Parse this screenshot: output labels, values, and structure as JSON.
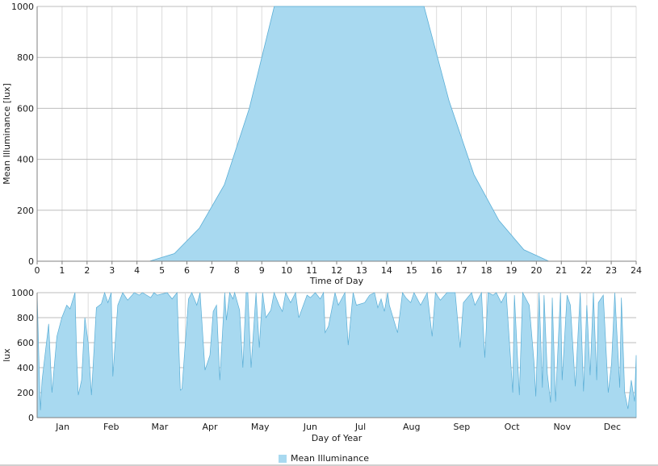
{
  "colors": {
    "fill": "#a8d9f0",
    "stroke": "#5aaed6",
    "grid": "#dcdcdc",
    "axis": "#808080"
  },
  "legend": {
    "label": "Mean Illuminance"
  },
  "chart_data": [
    {
      "type": "area",
      "xlabel": "Time of Day",
      "ylabel": "Mean Illuminance [lux]",
      "xlim": [
        0,
        24
      ],
      "ylim": [
        0,
        1000
      ],
      "xticks": [
        "0",
        "1",
        "2",
        "3",
        "4",
        "5",
        "6",
        "7",
        "8",
        "9",
        "10",
        "11",
        "12",
        "13",
        "14",
        "15",
        "16",
        "17",
        "18",
        "19",
        "20",
        "21",
        "22",
        "23",
        "24"
      ],
      "yticks": [
        "0",
        "200",
        "400",
        "600",
        "800",
        "1000"
      ],
      "grid": true,
      "series": [
        {
          "name": "Mean Illuminance",
          "x": [
            0,
            4.5,
            5.5,
            6.5,
            7.5,
            8.5,
            9.5,
            10.5,
            11.5,
            12.5,
            13.5,
            14.5,
            15.5,
            16.5,
            17.5,
            18.5,
            19.5,
            20.5,
            24
          ],
          "y": [
            0,
            0,
            30,
            130,
            300,
            600,
            1000,
            1000,
            1000,
            1000,
            1000,
            1000,
            1000,
            630,
            340,
            160,
            45,
            0,
            0
          ]
        }
      ]
    },
    {
      "type": "area",
      "xlabel": "Day of Year",
      "ylabel": "lux",
      "xlim": [
        1,
        365
      ],
      "ylim": [
        0,
        1000
      ],
      "yticks": [
        "0",
        "200",
        "400",
        "600",
        "800",
        "1000"
      ],
      "categories": [
        "Jan",
        "Feb",
        "Mar",
        "Apr",
        "May",
        "Jun",
        "Jul",
        "Aug",
        "Sep",
        "Oct",
        "Nov",
        "Dec"
      ],
      "grid": true,
      "dips": [
        [
          2,
          500
        ],
        [
          3,
          60
        ],
        [
          4,
          300
        ],
        [
          8,
          750
        ],
        [
          10,
          200
        ],
        [
          13,
          650
        ],
        [
          16,
          800
        ],
        [
          19,
          900
        ],
        [
          21,
          870
        ],
        [
          24,
          1000
        ],
        [
          25,
          500
        ],
        [
          26,
          180
        ],
        [
          28,
          300
        ],
        [
          30,
          800
        ],
        [
          32,
          600
        ],
        [
          34,
          180
        ],
        [
          37,
          880
        ],
        [
          40,
          910
        ],
        [
          42,
          1000
        ],
        [
          44,
          920
        ],
        [
          46,
          1000
        ],
        [
          47,
          330
        ],
        [
          50,
          900
        ],
        [
          53,
          1000
        ],
        [
          56,
          940
        ],
        [
          60,
          1000
        ],
        [
          63,
          980
        ],
        [
          65,
          1000
        ],
        [
          70,
          960
        ],
        [
          72,
          1000
        ],
        [
          74,
          980
        ],
        [
          80,
          1000
        ],
        [
          83,
          950
        ],
        [
          86,
          1000
        ],
        [
          88,
          220
        ],
        [
          89,
          230
        ],
        [
          93,
          950
        ],
        [
          95,
          1000
        ],
        [
          98,
          900
        ],
        [
          100,
          1000
        ],
        [
          103,
          380
        ],
        [
          106,
          500
        ],
        [
          108,
          850
        ],
        [
          110,
          900
        ],
        [
          112,
          300
        ],
        [
          115,
          1000
        ],
        [
          116,
          780
        ],
        [
          118,
          1000
        ],
        [
          120,
          950
        ],
        [
          121,
          1000
        ],
        [
          124,
          860
        ],
        [
          126,
          400
        ],
        [
          128,
          1000
        ],
        [
          129,
          1000
        ],
        [
          131,
          400
        ],
        [
          134,
          1000
        ],
        [
          136,
          560
        ],
        [
          138,
          1000
        ],
        [
          140,
          800
        ],
        [
          143,
          860
        ],
        [
          145,
          1000
        ],
        [
          148,
          900
        ],
        [
          150,
          850
        ],
        [
          152,
          1000
        ],
        [
          155,
          920
        ],
        [
          158,
          1000
        ],
        [
          160,
          800
        ],
        [
          165,
          980
        ],
        [
          167,
          960
        ],
        [
          170,
          1000
        ],
        [
          173,
          950
        ],
        [
          175,
          1000
        ],
        [
          176,
          680
        ],
        [
          178,
          730
        ],
        [
          182,
          1000
        ],
        [
          184,
          900
        ],
        [
          188,
          1000
        ],
        [
          190,
          580
        ],
        [
          193,
          1000
        ],
        [
          195,
          900
        ],
        [
          200,
          920
        ],
        [
          203,
          980
        ],
        [
          206,
          1000
        ],
        [
          208,
          880
        ],
        [
          210,
          950
        ],
        [
          212,
          850
        ],
        [
          214,
          1000
        ],
        [
          215,
          900
        ],
        [
          220,
          680
        ],
        [
          223,
          1000
        ],
        [
          225,
          960
        ],
        [
          228,
          920
        ],
        [
          230,
          1000
        ],
        [
          234,
          900
        ],
        [
          238,
          1000
        ],
        [
          241,
          650
        ],
        [
          243,
          1000
        ],
        [
          246,
          940
        ],
        [
          250,
          1000
        ],
        [
          255,
          1000
        ],
        [
          258,
          560
        ],
        [
          260,
          920
        ],
        [
          265,
          1000
        ],
        [
          267,
          900
        ],
        [
          271,
          1000
        ],
        [
          273,
          480
        ],
        [
          275,
          1000
        ],
        [
          278,
          980
        ],
        [
          280,
          1000
        ],
        [
          283,
          920
        ],
        [
          286,
          1000
        ],
        [
          290,
          200
        ],
        [
          291,
          980
        ],
        [
          294,
          180
        ],
        [
          296,
          1000
        ],
        [
          300,
          900
        ],
        [
          303,
          430
        ],
        [
          304,
          170
        ],
        [
          306,
          1000
        ],
        [
          308,
          240
        ],
        [
          309,
          980
        ],
        [
          311,
          350
        ],
        [
          313,
          120
        ],
        [
          314,
          960
        ],
        [
          316,
          130
        ],
        [
          319,
          1000
        ],
        [
          320,
          300
        ],
        [
          323,
          980
        ],
        [
          325,
          900
        ],
        [
          328,
          250
        ],
        [
          331,
          1000
        ],
        [
          333,
          210
        ],
        [
          335,
          900
        ],
        [
          337,
          340
        ],
        [
          339,
          1000
        ],
        [
          341,
          300
        ],
        [
          342,
          920
        ],
        [
          345,
          980
        ],
        [
          348,
          200
        ],
        [
          350,
          430
        ],
        [
          352,
          1000
        ],
        [
          355,
          240
        ],
        [
          356,
          960
        ],
        [
          358,
          200
        ],
        [
          360,
          70
        ],
        [
          362,
          300
        ],
        [
          364,
          130
        ],
        [
          365,
          500
        ]
      ]
    }
  ]
}
